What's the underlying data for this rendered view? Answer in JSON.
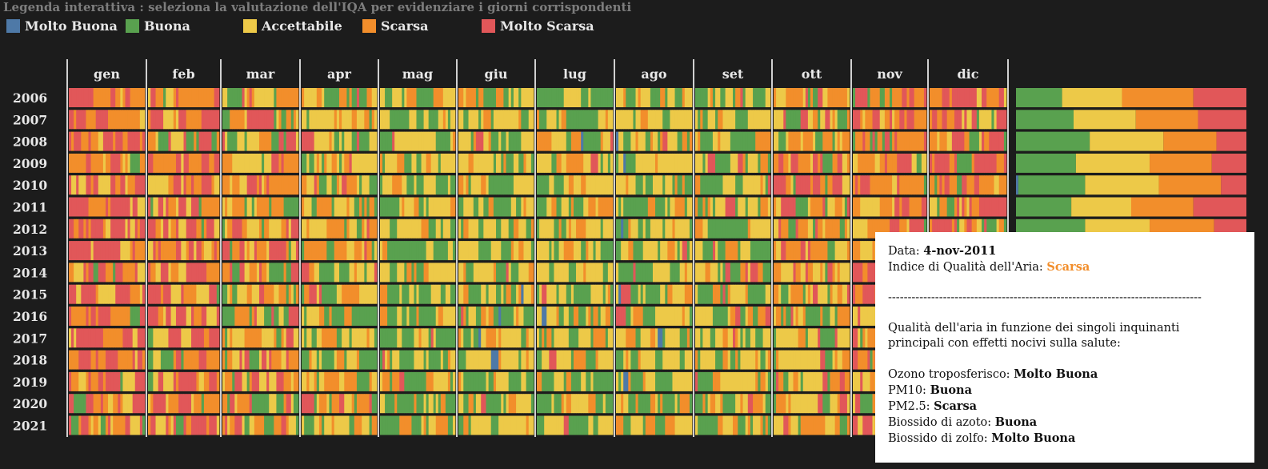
{
  "legend": {
    "title": "Legenda interattiva : seleziona la valutazione dell'IQA per evidenziare i giorni corrispondenti",
    "items": [
      {
        "label": "Molto Buona",
        "color": "#4e79a7"
      },
      {
        "label": "Buona",
        "color": "#59a14f"
      },
      {
        "label": "Accettabile",
        "color": "#edc948"
      },
      {
        "label": "Scarsa",
        "color": "#f28e2b"
      },
      {
        "label": "Molto Scarsa",
        "color": "#e15759"
      }
    ]
  },
  "chart_data": {
    "type": "heatmap",
    "months": [
      "gen",
      "feb",
      "mar",
      "apr",
      "mag",
      "giu",
      "lug",
      "ago",
      "set",
      "ott",
      "nov",
      "dic"
    ],
    "years": [
      "2006",
      "2007",
      "2008",
      "2009",
      "2010",
      "2011",
      "2012",
      "2013",
      "2014",
      "2015",
      "2016",
      "2017",
      "2018",
      "2019",
      "2020",
      "2021"
    ],
    "categories": [
      "Molto Buona",
      "Buona",
      "Accettabile",
      "Scarsa",
      "Molto Scarsa"
    ],
    "colors": [
      "#4e79a7",
      "#59a14f",
      "#edc948",
      "#f28e2b",
      "#e15759"
    ],
    "yearly_share": [
      {
        "year": "2006",
        "values": [
          0.0,
          0.2,
          0.26,
          0.31,
          0.23
        ]
      },
      {
        "year": "2007",
        "values": [
          0.0,
          0.25,
          0.27,
          0.27,
          0.21
        ]
      },
      {
        "year": "2008",
        "values": [
          0.0,
          0.32,
          0.32,
          0.23,
          0.13
        ]
      },
      {
        "year": "2009",
        "values": [
          0.0,
          0.26,
          0.32,
          0.27,
          0.15
        ]
      },
      {
        "year": "2010",
        "values": [
          0.01,
          0.29,
          0.32,
          0.27,
          0.11
        ]
      },
      {
        "year": "2011",
        "values": [
          0.0,
          0.24,
          0.26,
          0.27,
          0.23
        ]
      },
      {
        "year": "2012",
        "values": [
          0.0,
          0.3,
          0.28,
          0.28,
          0.14
        ]
      }
    ]
  },
  "tooltip": {
    "date_label": "Data: ",
    "date_value": "4-nov-2011",
    "iqa_label": "Indice di Qualità dell'Aria: ",
    "iqa_value": "Scarsa",
    "iqa_color": "#f28e2b",
    "separator": "--------------------------------------------------------------------------------",
    "intro_line1": "Qualità dell'aria in funzione dei singoli inquinanti",
    "intro_line2": "principali con effetti nocivi sulla salute:",
    "pollutants": [
      {
        "label": "Ozono troposferisco: ",
        "value": "Molto Buona"
      },
      {
        "label": "PM10: ",
        "value": "Buona"
      },
      {
        "label": "PM2.5: ",
        "value": "Scarsa"
      },
      {
        "label": "Biossido di azoto: ",
        "value": "Buona"
      },
      {
        "label": "Biossido di zolfo: ",
        "value": "Molto Buona"
      }
    ]
  }
}
